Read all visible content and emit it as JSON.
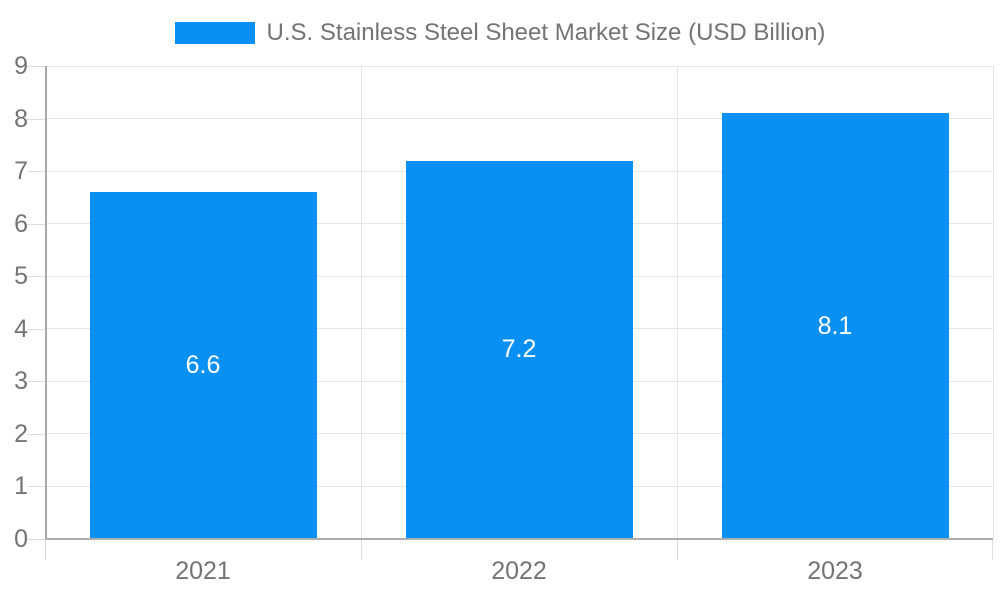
{
  "legend": {
    "label": "U.S. Stainless Steel Sheet Market Size (USD Billion)"
  },
  "chart_data": {
    "type": "bar",
    "title": "U.S. Stainless Steel Sheet Market Size (USD Billion)",
    "categories": [
      "2021",
      "2022",
      "2023"
    ],
    "values": [
      6.6,
      7.2,
      8.1
    ],
    "value_labels": [
      "6.6",
      "7.2",
      "8.1"
    ],
    "xlabel": "",
    "ylabel": "",
    "ylim": [
      0,
      9
    ],
    "yticks": [
      0,
      1,
      2,
      3,
      4,
      5,
      6,
      7,
      8,
      9
    ],
    "grid": true,
    "legend_position": "top",
    "bar_color": "#0990f5",
    "value_label_color": "#ffffff",
    "axis_text_color": "#747474",
    "gridline_color": "#e6e6e6"
  }
}
